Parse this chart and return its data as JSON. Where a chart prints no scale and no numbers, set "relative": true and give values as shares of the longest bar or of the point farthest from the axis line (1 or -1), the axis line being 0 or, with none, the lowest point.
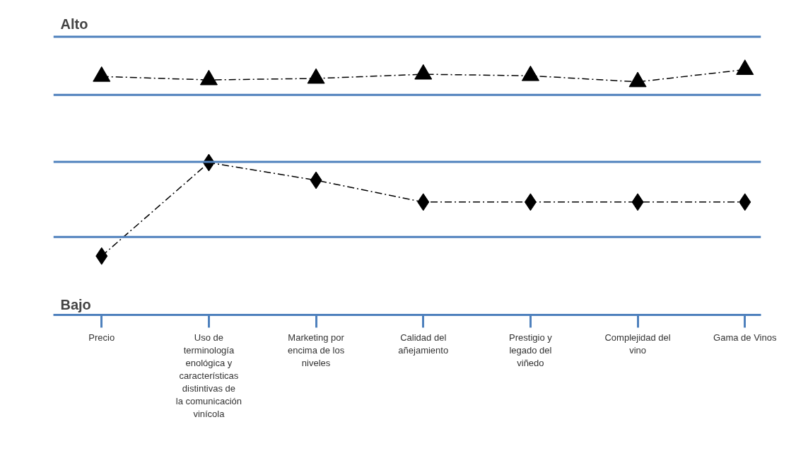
{
  "chart_data": {
    "type": "line",
    "relative": true,
    "categories": [
      "Precio",
      "Uso de terminología enológica y características distintivas de la comunicación vinícola",
      "Marketing por encima de los niveles",
      "Calidad del añejamiento",
      "Prestigio y legado del viñedo",
      "Complejidad del vino",
      "Gama de Vinos"
    ],
    "series": [
      {
        "color": "#000000",
        "marker": "triangle",
        "values": [
          0.972,
          0.958,
          0.964,
          0.981,
          0.975,
          0.95,
          1.0
        ]
      },
      {
        "color": "#000000",
        "marker": "diamond",
        "values": [
          0.24,
          0.621,
          0.549,
          0.46,
          0.46,
          0.46,
          0.46
        ]
      }
    ],
    "line_style": "dashed",
    "ref_lines": [
      {
        "axis": "y",
        "value": 1.134,
        "color": "#4f81bd"
      },
      {
        "axis": "y",
        "value": 0.897,
        "color": "#4f81bd"
      },
      {
        "axis": "y",
        "value": 0.624,
        "color": "#4f81bd"
      },
      {
        "axis": "y",
        "value": 0.318,
        "color": "#4f81bd"
      }
    ],
    "annotations": [
      "Alto",
      "Bajo"
    ]
  }
}
